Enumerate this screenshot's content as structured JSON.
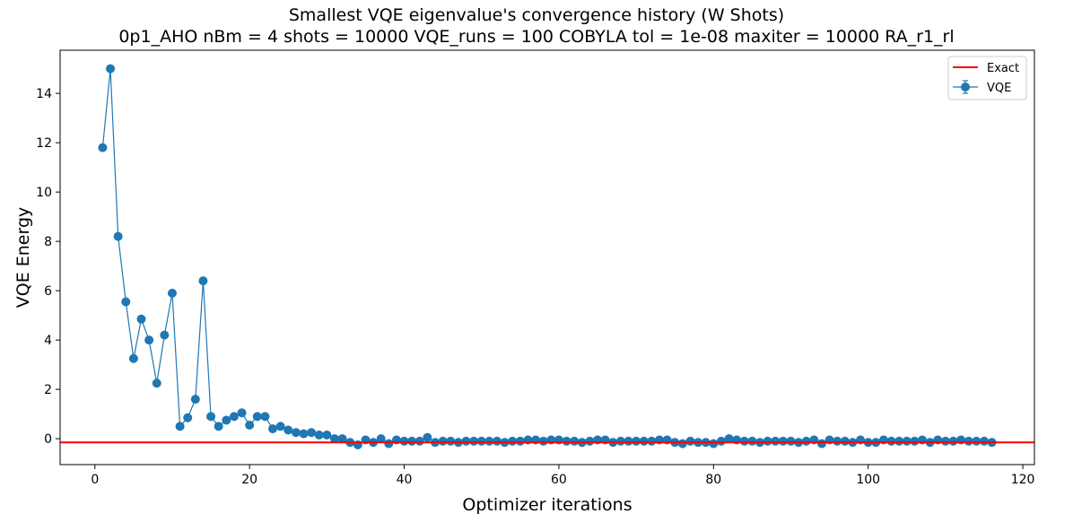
{
  "chart_data": {
    "type": "line",
    "title": "Smallest VQE eigenvalue's convergence history (W Shots)",
    "subtitle": "0p1_AHO    nBm = 4    shots = 10000   VQE_runs = 100    COBYLA    tol = 1e-08    maxiter = 10000    RA_r1_rl",
    "xlabel": "Optimizer iterations",
    "ylabel": "VQE Energy",
    "xlim": [
      -4.5,
      121.5
    ],
    "ylim": [
      -1.05,
      15.75
    ],
    "xticks": [
      0,
      20,
      40,
      60,
      80,
      100,
      120
    ],
    "yticks": [
      0,
      2,
      4,
      6,
      8,
      10,
      12,
      14
    ],
    "grid": false,
    "legend_position": "top-right",
    "series": [
      {
        "name": "Exact",
        "kind": "hline",
        "y": -0.15,
        "color": "#ff0000"
      },
      {
        "name": "VQE",
        "kind": "errorbar-line",
        "color": "#1f77b4",
        "x": [
          1,
          2,
          3,
          4,
          5,
          6,
          7,
          8,
          9,
          10,
          11,
          12,
          13,
          14,
          15,
          16,
          17,
          18,
          19,
          20,
          21,
          22,
          23,
          24,
          25,
          26,
          27,
          28,
          29,
          30,
          31,
          32,
          33,
          34,
          35,
          36,
          37,
          38,
          39,
          40,
          41,
          42,
          43,
          44,
          45,
          46,
          47,
          48,
          49,
          50,
          51,
          52,
          53,
          54,
          55,
          56,
          57,
          58,
          59,
          60,
          61,
          62,
          63,
          64,
          65,
          66,
          67,
          68,
          69,
          70,
          71,
          72,
          73,
          74,
          75,
          76,
          77,
          78,
          79,
          80,
          81,
          82,
          83,
          84,
          85,
          86,
          87,
          88,
          89,
          90,
          91,
          92,
          93,
          94,
          95,
          96,
          97,
          98,
          99,
          100,
          101,
          102,
          103,
          104,
          105,
          106,
          107,
          108,
          109,
          110,
          111,
          112,
          113,
          114,
          115,
          116
        ],
        "y": [
          11.8,
          15.0,
          8.2,
          5.55,
          3.25,
          4.85,
          4.0,
          2.25,
          4.2,
          5.9,
          0.5,
          0.85,
          1.6,
          6.4,
          0.9,
          0.5,
          0.75,
          0.9,
          1.05,
          0.55,
          0.9,
          0.9,
          0.4,
          0.5,
          0.35,
          0.25,
          0.2,
          0.25,
          0.15,
          0.15,
          0.0,
          0.0,
          -0.15,
          -0.25,
          -0.05,
          -0.15,
          0.0,
          -0.2,
          -0.05,
          -0.1,
          -0.1,
          -0.1,
          0.05,
          -0.15,
          -0.1,
          -0.1,
          -0.15,
          -0.1,
          -0.1,
          -0.1,
          -0.1,
          -0.1,
          -0.15,
          -0.1,
          -0.1,
          -0.05,
          -0.05,
          -0.1,
          -0.05,
          -0.05,
          -0.1,
          -0.1,
          -0.15,
          -0.1,
          -0.05,
          -0.05,
          -0.15,
          -0.1,
          -0.1,
          -0.1,
          -0.1,
          -0.1,
          -0.05,
          -0.05,
          -0.15,
          -0.2,
          -0.1,
          -0.15,
          -0.15,
          -0.2,
          -0.1,
          0.0,
          -0.05,
          -0.1,
          -0.1,
          -0.15,
          -0.1,
          -0.1,
          -0.1,
          -0.1,
          -0.15,
          -0.1,
          -0.05,
          -0.2,
          -0.05,
          -0.1,
          -0.1,
          -0.15,
          -0.05,
          -0.15,
          -0.15,
          -0.05,
          -0.1,
          -0.1,
          -0.1,
          -0.1,
          -0.05,
          -0.15,
          -0.05,
          -0.1,
          -0.1,
          -0.05,
          -0.1,
          -0.1,
          -0.1,
          -0.15
        ]
      }
    ]
  }
}
